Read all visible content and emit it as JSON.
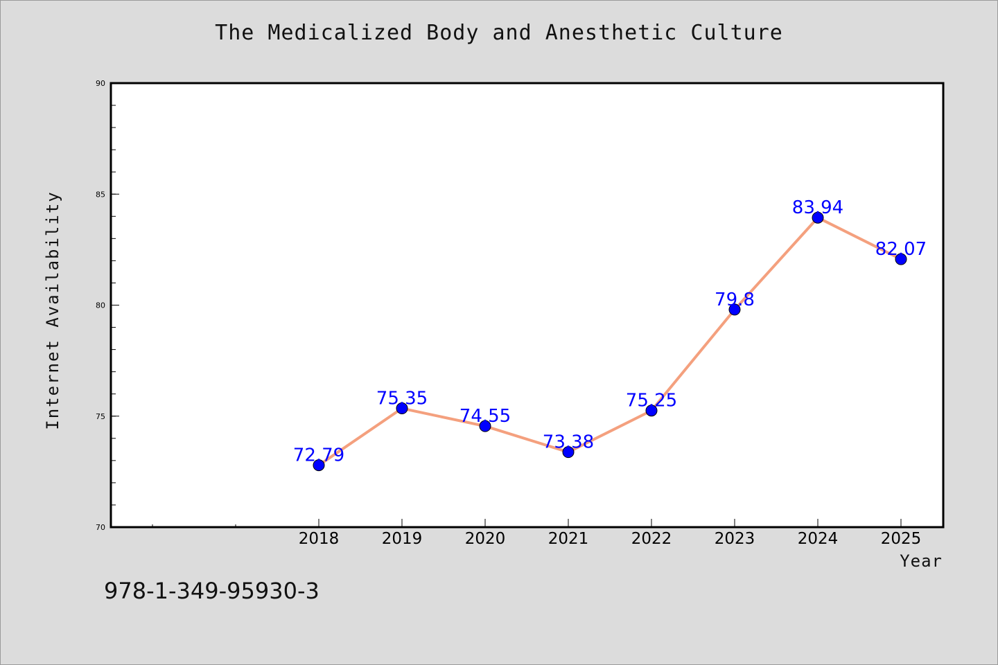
{
  "chart_data": {
    "type": "line",
    "title": "The Medicalized Body and Anesthetic Culture",
    "xlabel": "Year",
    "ylabel": "Internet Availability",
    "categories": [
      "2018",
      "2019",
      "2020",
      "2021",
      "2022",
      "2023",
      "2024",
      "2025"
    ],
    "values": [
      72.79,
      75.35,
      74.55,
      73.38,
      75.25,
      79.8,
      83.94,
      82.07
    ],
    "data_labels": [
      "72.79",
      "75.35",
      "74.55",
      "73.38",
      "75.25",
      "79.8",
      "83.94",
      "82.07"
    ],
    "ylim": [
      70,
      90
    ],
    "yticks": [
      "70",
      "75",
      "80",
      "85",
      "90"
    ],
    "grid": false,
    "colors": {
      "line": "#f4a07e",
      "marker": "#0000ff",
      "label": "#0000ff"
    }
  },
  "footer": {
    "isbn": "978-1-349-95930-3"
  }
}
